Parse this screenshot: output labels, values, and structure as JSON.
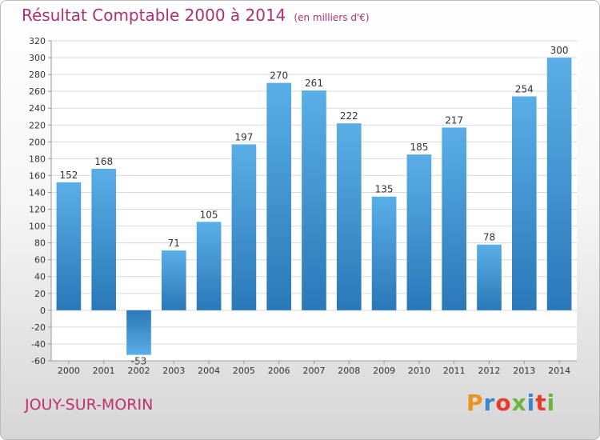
{
  "header": {
    "title": "Résultat Comptable 2000 à 2014",
    "unit": "(en milliers d'€)"
  },
  "footer": {
    "commune": "JOUY-SUR-MORIN",
    "brand": "Proxiti",
    "brand_colors": [
      "#e8941e",
      "#3a86c8",
      "#e63b2e",
      "#6cb43f",
      "#3a86c8",
      "#e63b2e",
      "#6cb43f"
    ]
  },
  "colors": {
    "bar_light": "#5aaee6",
    "bar_dark": "#2a78b8",
    "grid": "#d9d9d9",
    "axis_text": "#333333",
    "title": "#b0306a"
  },
  "chart_data": {
    "type": "bar",
    "title": "Résultat Comptable 2000 à 2014",
    "ylabel": "(en milliers d'€)",
    "xlabel": "",
    "categories": [
      "2000",
      "2001",
      "2002",
      "2003",
      "2004",
      "2005",
      "2006",
      "2007",
      "2008",
      "2009",
      "2010",
      "2011",
      "2012",
      "2013",
      "2014"
    ],
    "values": [
      152,
      168,
      -53,
      71,
      105,
      197,
      270,
      261,
      222,
      135,
      185,
      217,
      78,
      254,
      300
    ],
    "ylim": [
      -60,
      320
    ],
    "ytick_step": 20,
    "grid": true
  }
}
